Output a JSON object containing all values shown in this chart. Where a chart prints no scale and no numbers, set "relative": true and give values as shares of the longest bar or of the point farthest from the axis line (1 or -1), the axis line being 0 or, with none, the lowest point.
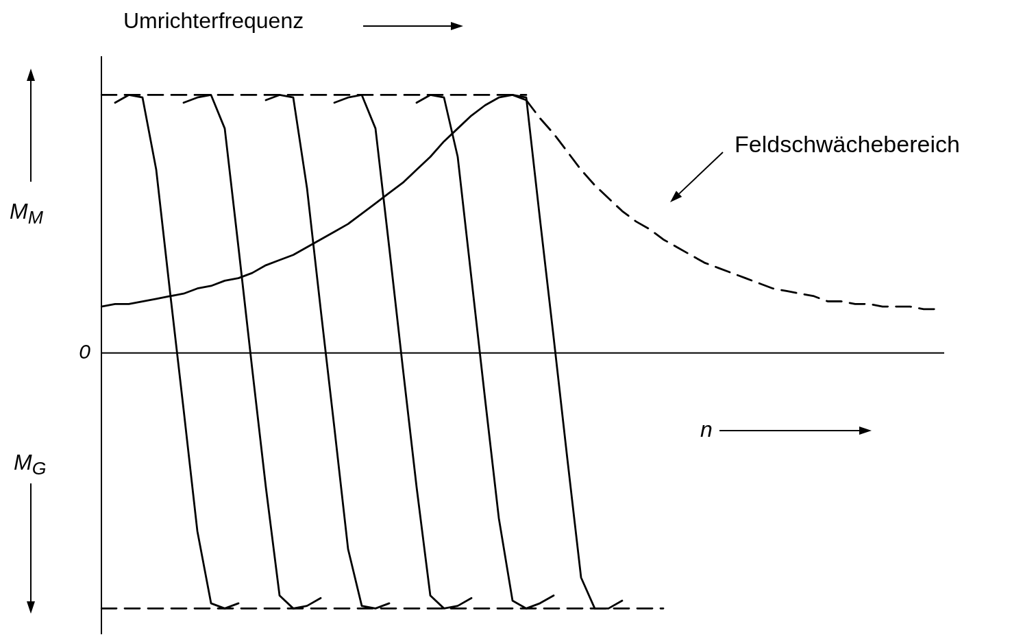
{
  "chart_data": {
    "type": "line",
    "relative": true,
    "marker": "none",
    "legend": false,
    "ylabel": "M$_{M}$",
    "xlabel": "n",
    "annotations": [
      "Umrichterfrequenz",
      "Feldschwächebereich",
      "M$_{G}$"
    ],
    "ref_lines": [
      {
        "axis": "y",
        "value": 0,
        "label": "0"
      }
    ],
    "categories": [
      null,
      null,
      null,
      null,
      null,
      null,
      null,
      null,
      null,
      null,
      null,
      null,
      null,
      null,
      null,
      null,
      null,
      null,
      null,
      null,
      null,
      null,
      null,
      null,
      null,
      null,
      null,
      null,
      null,
      null,
      null,
      null,
      null,
      null,
      null,
      null,
      null,
      null,
      null,
      null,
      null,
      null,
      null,
      null,
      null,
      null,
      null,
      null,
      null,
      null,
      null,
      null,
      null,
      null,
      null,
      null,
      null,
      null,
      null,
      null,
      null,
      null
    ],
    "series": [
      {
        "color": "#000000",
        "line_style": "dashed",
        "values": [
          1,
          1,
          1,
          1,
          1,
          1,
          1,
          1,
          1,
          1,
          1,
          1,
          1,
          1,
          1,
          1,
          1,
          1,
          1,
          1,
          1,
          1,
          1,
          1,
          1,
          1,
          1,
          1,
          1,
          1,
          1,
          1,
          null,
          null,
          null,
          null,
          null,
          null,
          null,
          null,
          null,
          null,
          null,
          null,
          null,
          null,
          null,
          null,
          null,
          null,
          null,
          null,
          null,
          null,
          null,
          null,
          null,
          null,
          null,
          null,
          null,
          null
        ]
      },
      {
        "color": "#000000",
        "line_style": "dashed",
        "values": [
          -0.99,
          -0.99,
          -0.99,
          -0.99,
          -0.99,
          -0.99,
          -0.99,
          -0.99,
          -0.99,
          -0.99,
          -0.99,
          -0.99,
          -0.99,
          -0.99,
          -0.99,
          -0.99,
          -0.99,
          -0.99,
          -0.99,
          -0.99,
          -0.99,
          -0.99,
          -0.99,
          -0.99,
          -0.99,
          -0.99,
          -0.99,
          -0.99,
          -0.99,
          -0.99,
          -0.99,
          -0.99,
          -0.99,
          -0.99,
          -0.99,
          -0.99,
          -0.99,
          -0.99,
          -0.99,
          -0.99,
          -0.99,
          -0.99,
          null,
          null,
          null,
          null,
          null,
          null,
          null,
          null,
          null,
          null,
          null,
          null,
          null,
          null,
          null,
          null,
          null,
          null,
          null,
          null
        ]
      },
      {
        "color": "#000000",
        "line_style": "solid",
        "values": [
          null,
          0.97,
          1.0,
          0.99,
          0.71,
          0.24,
          -0.22,
          -0.69,
          -0.97,
          -0.99,
          -0.97,
          null,
          null,
          null,
          null,
          null,
          null,
          null,
          null,
          null,
          null,
          null,
          null,
          null,
          null,
          null,
          null,
          null,
          null,
          null,
          null,
          null,
          null,
          null,
          null,
          null,
          null,
          null,
          null,
          null,
          null,
          null,
          null,
          null,
          null,
          null,
          null,
          null,
          null,
          null,
          null,
          null,
          null,
          null,
          null,
          null,
          null,
          null,
          null,
          null,
          null,
          null
        ]
      },
      {
        "color": "#000000",
        "line_style": "solid",
        "values": [
          null,
          null,
          null,
          null,
          null,
          null,
          0.97,
          0.99,
          1.0,
          0.87,
          0.41,
          -0.06,
          -0.52,
          -0.94,
          -0.99,
          -0.98,
          -0.95,
          null,
          null,
          null,
          null,
          null,
          null,
          null,
          null,
          null,
          null,
          null,
          null,
          null,
          null,
          null,
          null,
          null,
          null,
          null,
          null,
          null,
          null,
          null,
          null,
          null,
          null,
          null,
          null,
          null,
          null,
          null,
          null,
          null,
          null,
          null,
          null,
          null,
          null,
          null,
          null,
          null,
          null,
          null,
          null,
          null
        ]
      },
      {
        "color": "#000000",
        "line_style": "solid",
        "values": [
          null,
          null,
          null,
          null,
          null,
          null,
          null,
          null,
          null,
          null,
          null,
          null,
          0.98,
          1.0,
          0.99,
          0.64,
          0.17,
          -0.29,
          -0.76,
          -0.98,
          -0.99,
          -0.97,
          null,
          null,
          null,
          null,
          null,
          null,
          null,
          null,
          null,
          null,
          null,
          null,
          null,
          null,
          null,
          null,
          null,
          null,
          null,
          null,
          null,
          null,
          null,
          null,
          null,
          null,
          null,
          null,
          null,
          null,
          null,
          null,
          null,
          null,
          null,
          null,
          null,
          null,
          null,
          null
        ]
      },
      {
        "color": "#000000",
        "line_style": "solid",
        "values": [
          null,
          null,
          null,
          null,
          null,
          null,
          null,
          null,
          null,
          null,
          null,
          null,
          null,
          null,
          null,
          null,
          null,
          0.97,
          0.99,
          1.0,
          0.87,
          0.41,
          -0.06,
          -0.52,
          -0.94,
          -0.99,
          -0.98,
          -0.95,
          null,
          null,
          null,
          null,
          null,
          null,
          null,
          null,
          null,
          null,
          null,
          null,
          null,
          null,
          null,
          null,
          null,
          null,
          null,
          null,
          null,
          null,
          null,
          null,
          null,
          null,
          null,
          null,
          null,
          null,
          null,
          null,
          null,
          null
        ]
      },
      {
        "color": "#000000",
        "line_style": "solid",
        "values": [
          null,
          null,
          null,
          null,
          null,
          null,
          null,
          null,
          null,
          null,
          null,
          null,
          null,
          null,
          null,
          null,
          null,
          null,
          null,
          null,
          null,
          null,
          null,
          0.97,
          1.0,
          0.99,
          0.76,
          0.29,
          -0.18,
          -0.64,
          -0.96,
          -0.99,
          -0.97,
          -0.94,
          null,
          null,
          null,
          null,
          null,
          null,
          null,
          null,
          null,
          null,
          null,
          null,
          null,
          null,
          null,
          null,
          null,
          null,
          null,
          null,
          null,
          null,
          null,
          null,
          null,
          null,
          null,
          null
        ]
      },
      {
        "color": "#000000",
        "line_style": "solid",
        "values": [
          null,
          null,
          null,
          null,
          null,
          null,
          null,
          null,
          null,
          null,
          null,
          null,
          null,
          null,
          null,
          null,
          null,
          null,
          null,
          null,
          null,
          null,
          null,
          null,
          null,
          null,
          null,
          null,
          null,
          null,
          1.0,
          0.99,
          0.52,
          0.06,
          -0.41,
          -0.87,
          -0.99,
          -0.99,
          -0.96,
          null,
          null,
          null,
          null,
          null,
          null,
          null,
          null,
          null,
          null,
          null,
          null,
          null,
          null,
          null,
          null,
          null,
          null,
          null,
          null,
          null,
          null,
          null
        ]
      },
      {
        "color": "#000000",
        "line_style": "solid",
        "values": [
          0.18,
          0.19,
          0.19,
          0.2,
          0.21,
          0.22,
          0.23,
          0.25,
          0.26,
          0.28,
          0.29,
          0.31,
          0.34,
          0.36,
          0.38,
          0.41,
          0.44,
          0.47,
          0.5,
          0.54,
          0.58,
          0.62,
          0.66,
          0.71,
          0.76,
          0.82,
          0.87,
          0.92,
          0.96,
          0.99,
          1.0,
          0.98,
          null,
          null,
          null,
          null,
          null,
          null,
          null,
          null,
          null,
          null,
          null,
          null,
          null,
          null,
          null,
          null,
          null,
          null,
          null,
          null,
          null,
          null,
          null,
          null,
          null,
          null,
          null,
          null,
          null,
          null
        ]
      },
      {
        "color": "#000000",
        "line_style": "dashed",
        "values": [
          null,
          null,
          null,
          null,
          null,
          null,
          null,
          null,
          null,
          null,
          null,
          null,
          null,
          null,
          null,
          null,
          null,
          null,
          null,
          null,
          null,
          null,
          null,
          null,
          null,
          null,
          null,
          null,
          null,
          null,
          null,
          0.98,
          0.91,
          0.85,
          0.78,
          0.71,
          0.65,
          0.6,
          0.55,
          0.51,
          0.48,
          0.44,
          0.41,
          0.38,
          0.35,
          0.33,
          0.31,
          0.29,
          0.27,
          0.25,
          0.24,
          0.23,
          0.22,
          0.2,
          0.2,
          0.19,
          0.19,
          0.18,
          0.18,
          0.18,
          0.17,
          0.17
        ]
      }
    ]
  }
}
